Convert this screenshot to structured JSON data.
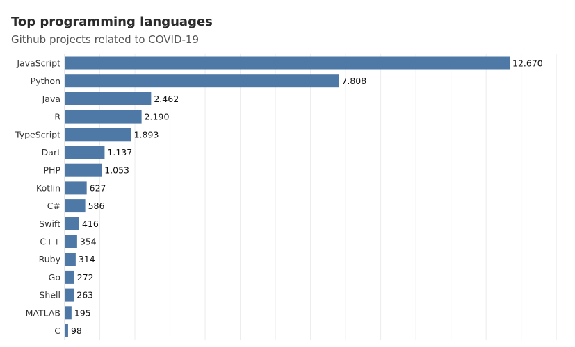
{
  "title": "Top programming languages",
  "subtitle": "Github projects related to COVID-19",
  "colors": {
    "bar": "#4e79a7",
    "grid": "#ececec",
    "axis": "#d0d0d0"
  },
  "chart_data": {
    "type": "bar",
    "orientation": "horizontal",
    "categories": [
      "JavaScript",
      "Python",
      "Java",
      "R",
      "TypeScript",
      "Dart",
      "PHP",
      "Kotlin",
      "C#",
      "Swift",
      "C++",
      "Ruby",
      "Go",
      "Shell",
      "MATLAB",
      "C"
    ],
    "values": [
      12670,
      7808,
      2462,
      2190,
      1893,
      1137,
      1053,
      627,
      586,
      416,
      354,
      314,
      272,
      263,
      195,
      98
    ],
    "value_labels": [
      "12.670",
      "7.808",
      "2.462",
      "2.190",
      "1.893",
      "1.137",
      "1.053",
      "627",
      "586",
      "416",
      "354",
      "314",
      "272",
      "263",
      "195",
      "98"
    ],
    "xlim": [
      0,
      14000
    ],
    "grid": true,
    "legend": "none"
  }
}
